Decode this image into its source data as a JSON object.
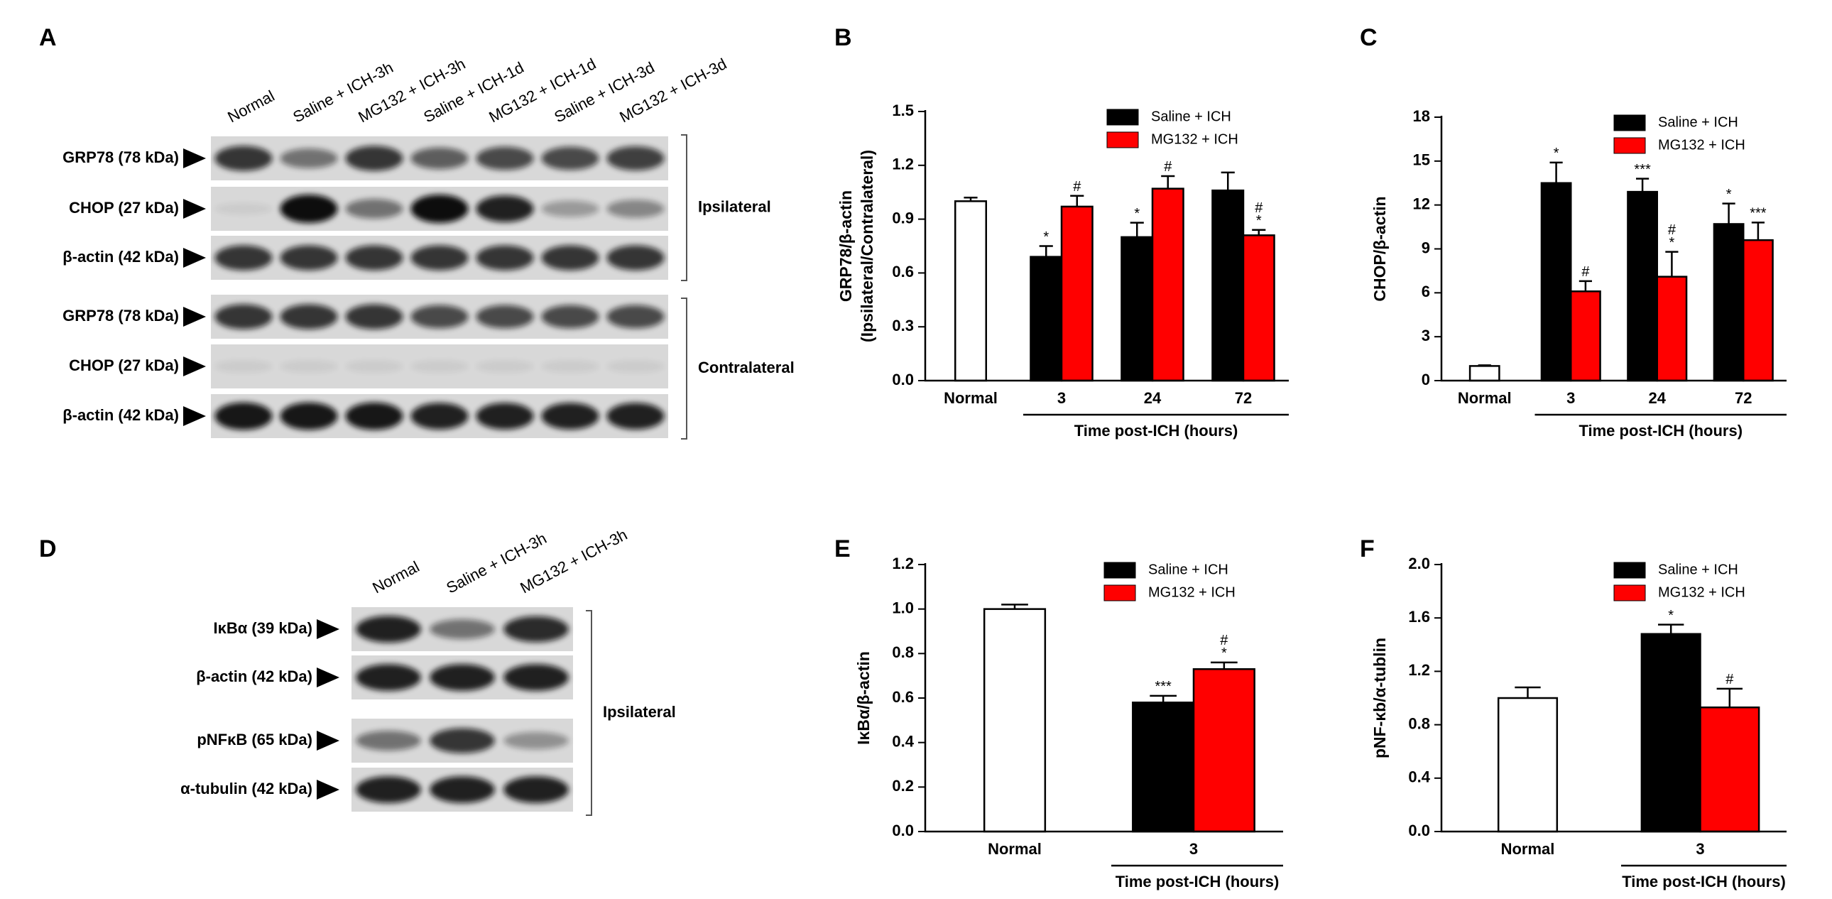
{
  "panel_labels": [
    "A",
    "B",
    "C",
    "D",
    "E",
    "F"
  ],
  "blot_a": {
    "lanes": [
      "Normal",
      "Saline + ICH-3h",
      "MG132 + ICH-3h",
      "Saline + ICH-1d",
      "MG132 + ICH-1d",
      "Saline + ICH-3d",
      "MG132 + ICH-3d"
    ],
    "rows": [
      "GRP78 (78 kDa)",
      "CHOP (27 kDa)",
      "β-actin (42 kDa)",
      "GRP78 (78 kDa)",
      "CHOP (27 kDa)",
      "β-actin (42 kDa)"
    ],
    "groups": [
      "Ipsilateral",
      "Contralateral"
    ]
  },
  "blot_d": {
    "lanes": [
      "Normal",
      "Saline + ICH-3h",
      "MG132 + ICH-3h"
    ],
    "rows": [
      "IκBα (39 kDa)",
      "β-actin (42 kDa)",
      "pNFκB (65 kDa)",
      "α-tubulin (42 kDa)"
    ],
    "groups": [
      "Ipsilateral"
    ]
  },
  "chart_data": [
    {
      "type": "bar",
      "ylabel": [
        "GRP78/β-actin",
        "(Ipsilateral/Contralateral)"
      ],
      "xlabel": "Time post-ICH (hours)",
      "categories": [
        "Normal",
        "3",
        "24",
        "72"
      ],
      "normal": {
        "value": 1.0,
        "error": 0.02,
        "color": "#ffffff"
      },
      "series": [
        {
          "name": "Saline + ICH",
          "color": "#000000",
          "values": [
            null,
            0.69,
            0.8,
            1.06
          ],
          "errors": [
            null,
            0.06,
            0.08,
            0.1
          ],
          "marks": [
            null,
            "*",
            "*",
            null
          ]
        },
        {
          "name": "MG132 + ICH",
          "color": "#ff0000",
          "values": [
            null,
            0.97,
            1.07,
            0.81
          ],
          "errors": [
            null,
            0.06,
            0.07,
            0.03
          ],
          "marks": [
            null,
            "#",
            "#",
            [
              "#",
              "*"
            ]
          ]
        }
      ],
      "ylim": [
        0,
        1.5
      ],
      "yticks": [
        {
          "value": 0,
          "label": "0.0"
        },
        0.3,
        0.6,
        0.9,
        1.2,
        1.5
      ]
    },
    {
      "type": "bar",
      "ylabel": [
        "CHOP/β-actin"
      ],
      "xlabel": "Time post-ICH (hours)",
      "categories": [
        "Normal",
        "3",
        "24",
        "72"
      ],
      "normal": {
        "value": 1.0,
        "error": 0.05,
        "color": "#ffffff"
      },
      "series": [
        {
          "name": "Saline + ICH",
          "color": "#000000",
          "values": [
            null,
            13.5,
            12.9,
            10.7
          ],
          "errors": [
            null,
            1.4,
            0.9,
            1.4
          ],
          "marks": [
            null,
            "*",
            "***",
            "*"
          ]
        },
        {
          "name": "MG132 + ICH",
          "color": "#ff0000",
          "values": [
            null,
            6.1,
            7.1,
            9.6
          ],
          "errors": [
            null,
            0.7,
            1.7,
            1.2
          ],
          "marks": [
            null,
            "#",
            [
              "#",
              "*"
            ],
            "***"
          ]
        }
      ],
      "ylim": [
        0,
        18
      ],
      "yticks": [
        0,
        3,
        6,
        9,
        12,
        15,
        18
      ]
    },
    {
      "type": "bar",
      "ylabel": [
        "IκBα/β-actin"
      ],
      "xlabel": "Time post-ICH  (hours)",
      "categories": [
        "Normal",
        "3"
      ],
      "normal": {
        "value": 1.0,
        "error": 0.02,
        "color": "#ffffff"
      },
      "series": [
        {
          "name": "Saline + ICH",
          "color": "#000000",
          "values": [
            null,
            0.58
          ],
          "errors": [
            null,
            0.03
          ],
          "marks": [
            null,
            "***"
          ]
        },
        {
          "name": "MG132 + ICH",
          "color": "#ff0000",
          "values": [
            null,
            0.73
          ],
          "errors": [
            null,
            0.03
          ],
          "marks": [
            null,
            [
              "#",
              "*"
            ]
          ]
        }
      ],
      "ylim": [
        0,
        1.2
      ],
      "yticks": [
        {
          "value": 0,
          "label": "0.0"
        },
        0.2,
        0.4,
        0.6,
        0.8,
        {
          "value": 1,
          "label": "1.0"
        },
        1.2
      ]
    },
    {
      "type": "bar",
      "ylabel": [
        "pNF-κb/α-tublin"
      ],
      "xlabel": "Time post-ICH  (hours)",
      "categories": [
        "Normal",
        "3"
      ],
      "normal": {
        "value": 1.0,
        "error": 0.08,
        "color": "#ffffff"
      },
      "series": [
        {
          "name": "Saline + ICH",
          "color": "#000000",
          "values": [
            null,
            1.48
          ],
          "errors": [
            null,
            0.07
          ],
          "marks": [
            null,
            "*"
          ]
        },
        {
          "name": "MG132 + ICH",
          "color": "#ff0000",
          "values": [
            null,
            0.93
          ],
          "errors": [
            null,
            0.14
          ],
          "marks": [
            null,
            "#"
          ]
        }
      ],
      "ylim": [
        0,
        2.0
      ],
      "yticks": [
        {
          "value": 0,
          "label": "0.0"
        },
        0.4,
        0.8,
        1.2,
        1.6,
        {
          "value": 2,
          "label": "2.0"
        }
      ]
    }
  ]
}
